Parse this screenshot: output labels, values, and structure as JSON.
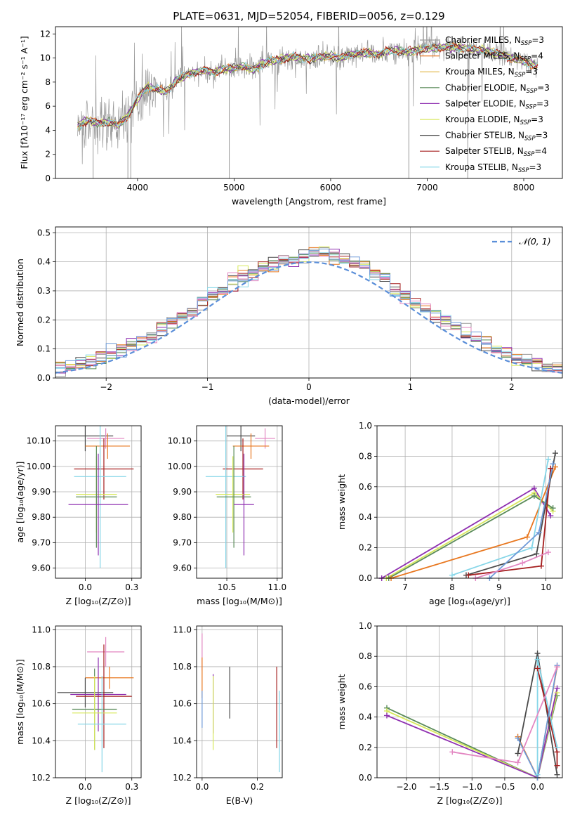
{
  "title": "PLATE=0631, MJD=52054, FIBERID=0056, z=0.129",
  "colors": {
    "Chabrier MILES": "#9a9a9a",
    "Salpeter MILES": "#e8771f",
    "Kroupa MILES": "#e3b84a",
    "Chabrier ELODIE": "#5b8c5a",
    "Salpeter ELODIE": "#8e2fb0",
    "Kroupa ELODIE": "#d7e85a",
    "Chabrier STELIB": "#4a4a4a",
    "Salpeter STELIB": "#a51f1f",
    "Kroupa STELIB": "#86d6e8",
    "Normal": "#5b8fd9",
    "Extra1": "#e387c2",
    "Extra2": "#6e9ad8"
  },
  "chart_data": [
    {
      "type": "line",
      "xlabel": "wavelength [Angstrom, rest frame]",
      "ylabel": "Flux [fλ10⁻¹⁷ erg cm⁻² s⁻¹ A⁻¹]",
      "xlim": [
        3150,
        8400
      ],
      "ylim": [
        0,
        12.6
      ],
      "xticks": [
        4000,
        5000,
        6000,
        7000,
        8000
      ],
      "yticks": [
        0,
        2,
        4,
        6,
        8,
        10,
        12
      ],
      "grid": false,
      "legend_position": "top-right",
      "legend": [
        {
          "label": "Chabrier MILES, N",
          "sub": "SSP",
          "suffix": "=3",
          "key": "Chabrier MILES"
        },
        {
          "label": "Salpeter MILES, N",
          "sub": "SSP",
          "suffix": "=4",
          "key": "Salpeter MILES"
        },
        {
          "label": "Kroupa MILES, N",
          "sub": "SSP",
          "suffix": "=3",
          "key": "Kroupa MILES"
        },
        {
          "label": "Chabrier ELODIE, N",
          "sub": "SSP",
          "suffix": "=3",
          "key": "Chabrier ELODIE"
        },
        {
          "label": "Salpeter ELODIE, N",
          "sub": "SSP",
          "suffix": "=3",
          "key": "Salpeter ELODIE"
        },
        {
          "label": "Kroupa ELODIE, N",
          "sub": "SSP",
          "suffix": "=3",
          "key": "Kroupa ELODIE"
        },
        {
          "label": "Chabrier STELIB, N",
          "sub": "SSP",
          "suffix": "=3",
          "key": "Chabrier STELIB"
        },
        {
          "label": "Salpeter STELIB, N",
          "sub": "SSP",
          "suffix": "=4",
          "key": "Salpeter STELIB"
        },
        {
          "label": "Kroupa STELIB, N",
          "sub": "SSP",
          "suffix": "=3",
          "key": "Kroupa STELIB"
        }
      ],
      "continuum": [
        [
          3380,
          4.4
        ],
        [
          3480,
          4.8
        ],
        [
          3600,
          4.6
        ],
        [
          3700,
          4.7
        ],
        [
          3800,
          4.4
        ],
        [
          3900,
          5.2
        ],
        [
          4000,
          6.6
        ],
        [
          4100,
          7.6
        ],
        [
          4200,
          7.4
        ],
        [
          4300,
          7.2
        ],
        [
          4400,
          8.1
        ],
        [
          4500,
          8.6
        ],
        [
          4600,
          8.8
        ],
        [
          4700,
          9.0
        ],
        [
          4800,
          8.8
        ],
        [
          4900,
          9.1
        ],
        [
          5000,
          9.2
        ],
        [
          5100,
          9.3
        ],
        [
          5200,
          9.0
        ],
        [
          5300,
          9.6
        ],
        [
          5400,
          9.8
        ],
        [
          5500,
          9.9
        ],
        [
          5600,
          10.1
        ],
        [
          5700,
          10.0
        ],
        [
          5800,
          9.9
        ],
        [
          5900,
          10.1
        ],
        [
          6000,
          10.2
        ],
        [
          6100,
          10.0
        ],
        [
          6200,
          10.3
        ],
        [
          6300,
          10.4
        ],
        [
          6400,
          10.4
        ],
        [
          6500,
          10.3
        ],
        [
          6600,
          10.6
        ],
        [
          6700,
          10.6
        ],
        [
          6800,
          10.5
        ],
        [
          6900,
          10.7
        ],
        [
          7000,
          10.8
        ],
        [
          7200,
          10.9
        ],
        [
          7400,
          10.8
        ],
        [
          7600,
          10.6
        ],
        [
          7800,
          10.2
        ],
        [
          8000,
          9.7
        ],
        [
          8150,
          9.3
        ]
      ]
    },
    {
      "type": "area",
      "xlabel": "(data-model)/error",
      "ylabel": "Normed distribution",
      "xlim": [
        -2.5,
        2.5
      ],
      "ylim": [
        0,
        0.52
      ],
      "xticks": [
        -2,
        -1,
        0,
        1,
        2
      ],
      "yticks": [
        0.0,
        0.1,
        0.2,
        0.3,
        0.4,
        0.5
      ],
      "grid": true,
      "legend_position": "top-right",
      "legend": [
        {
          "label": "𝒩(0, 1)",
          "key": "Normal"
        }
      ],
      "bin_width": 0.1
    },
    {
      "type": "scatter",
      "xlabel": "Z [log₁₀(Z/Z⊙)]",
      "ylabel": "age  [log₁₀(age/yr)]",
      "xlim": [
        -0.16,
        0.3
      ],
      "ylim": [
        9.56,
        10.16
      ],
      "xticks": [
        0.0,
        0.25
      ],
      "yticks": [
        9.6,
        9.7,
        9.8,
        9.9,
        10.0,
        10.1
      ],
      "grid": true,
      "points": [
        {
          "x": 0.0,
          "y": 10.12,
          "xerr": 0.15,
          "yerr": 0.06,
          "key": "Chabrier STELIB"
        },
        {
          "x": 0.11,
          "y": 10.11,
          "xerr": 0.1,
          "yerr": 0.04,
          "key": "Extra1"
        },
        {
          "x": 0.12,
          "y": 10.08,
          "xerr": 0.12,
          "yerr": 0.05,
          "key": "Salpeter MILES"
        },
        {
          "x": 0.1,
          "y": 9.99,
          "xerr": 0.16,
          "yerr": 0.12,
          "key": "Salpeter STELIB"
        },
        {
          "x": 0.08,
          "y": 9.96,
          "xerr": 0.14,
          "yerr": 0.36,
          "key": "Kroupa STELIB"
        },
        {
          "x": 0.06,
          "y": 9.89,
          "xerr": 0.11,
          "yerr": 0.15,
          "key": "Kroupa ELODIE"
        },
        {
          "x": 0.06,
          "y": 9.88,
          "xerr": 0.11,
          "yerr": 0.2,
          "key": "Chabrier ELODIE"
        },
        {
          "x": 0.07,
          "y": 9.85,
          "xerr": 0.16,
          "yerr": 0.2,
          "key": "Salpeter ELODIE"
        }
      ]
    },
    {
      "type": "scatter",
      "xlabel": "mass [log₁₀(M/M⊙)]",
      "ylabel": "",
      "xlim": [
        10.2,
        11.05
      ],
      "ylim": [
        9.56,
        10.16
      ],
      "xticks": [
        10.5,
        11.0
      ],
      "yticks": [
        9.6,
        9.7,
        9.8,
        9.9,
        10.0,
        10.1
      ],
      "grid": true,
      "points": [
        {
          "x": 10.64,
          "y": 10.12,
          "xerr": 0.14,
          "yerr": 0.06,
          "key": "Chabrier STELIB"
        },
        {
          "x": 10.88,
          "y": 10.11,
          "xerr": 0.1,
          "yerr": 0.04,
          "key": "Extra1"
        },
        {
          "x": 10.74,
          "y": 10.08,
          "xerr": 0.18,
          "yerr": 0.05,
          "key": "Salpeter MILES"
        },
        {
          "x": 10.66,
          "y": 9.99,
          "xerr": 0.2,
          "yerr": 0.12,
          "key": "Salpeter STELIB"
        },
        {
          "x": 10.49,
          "y": 9.96,
          "xerr": 0.2,
          "yerr": 0.36,
          "key": "Kroupa STELIB"
        },
        {
          "x": 10.56,
          "y": 9.89,
          "xerr": 0.17,
          "yerr": 0.15,
          "key": "Kroupa ELODIE"
        },
        {
          "x": 10.57,
          "y": 9.88,
          "xerr": 0.17,
          "yerr": 0.2,
          "key": "Chabrier ELODIE"
        },
        {
          "x": 10.67,
          "y": 9.85,
          "xerr": 0.1,
          "yerr": 0.2,
          "key": "Salpeter ELODIE"
        }
      ]
    },
    {
      "type": "line",
      "xlabel": "age  [log₁₀(age/yr)]",
      "ylabel": "mass weight",
      "xlim": [
        6.4,
        10.35
      ],
      "ylim": [
        0,
        1.0
      ],
      "xticks": [
        7,
        8,
        9,
        10
      ],
      "yticks": [
        0.0,
        0.2,
        0.4,
        0.6,
        0.8,
        1.0
      ],
      "grid": true,
      "series": [
        {
          "key": "Salpeter ELODIE",
          "x": [
            6.5,
            9.75,
            10.1
          ],
          "y": [
            0.0,
            0.59,
            0.41
          ]
        },
        {
          "key": "Kroupa ELODIE",
          "x": [
            6.6,
            9.75,
            10.15
          ],
          "y": [
            0.0,
            0.56,
            0.44
          ]
        },
        {
          "key": "Chabrier ELODIE",
          "x": [
            6.65,
            9.75,
            10.15
          ],
          "y": [
            0.0,
            0.54,
            0.46
          ]
        },
        {
          "key": "Salpeter MILES",
          "x": [
            6.7,
            9.6,
            10.2
          ],
          "y": [
            0.0,
            0.27,
            0.73
          ]
        },
        {
          "key": "Chabrier STELIB",
          "x": [
            8.3,
            9.8,
            10.2
          ],
          "y": [
            0.02,
            0.16,
            0.82
          ]
        },
        {
          "key": "Salpeter STELIB",
          "x": [
            8.35,
            9.9,
            10.1
          ],
          "y": [
            0.02,
            0.08,
            0.72
          ]
        },
        {
          "key": "Kroupa STELIB",
          "x": [
            8.0,
            9.7,
            10.05
          ],
          "y": [
            0.02,
            0.2,
            0.78
          ]
        },
        {
          "key": "Extra2",
          "x": [
            8.8,
            9.85,
            10.15
          ],
          "y": [
            0.0,
            0.3,
            0.75
          ]
        },
        {
          "key": "Extra1",
          "x": [
            8.5,
            9.5,
            10.05
          ],
          "y": [
            0.0,
            0.1,
            0.17
          ]
        }
      ]
    },
    {
      "type": "scatter",
      "xlabel": "Z [log₁₀(Z/Z⊙)]",
      "ylabel": "mass [log₁₀(M/M⊙)]",
      "xlim": [
        -0.16,
        0.3
      ],
      "ylim": [
        10.2,
        11.02
      ],
      "xticks": [
        0.0,
        0.25
      ],
      "yticks": [
        10.2,
        10.4,
        10.6,
        10.8,
        11.0
      ],
      "grid": true,
      "points": [
        {
          "x": 0.11,
          "y": 10.88,
          "xerr": 0.1,
          "yerr": 0.08,
          "key": "Extra1"
        },
        {
          "x": 0.13,
          "y": 10.74,
          "xerr": 0.13,
          "yerr": 0.06,
          "key": "Salpeter MILES"
        },
        {
          "x": 0.0,
          "y": 10.66,
          "xerr": 0.15,
          "yerr": 0.08,
          "key": "Chabrier STELIB"
        },
        {
          "x": 0.07,
          "y": 10.65,
          "xerr": 0.15,
          "yerr": 0.2,
          "key": "Salpeter ELODIE"
        },
        {
          "x": 0.1,
          "y": 10.64,
          "xerr": 0.15,
          "yerr": 0.28,
          "key": "Salpeter STELIB"
        },
        {
          "x": 0.05,
          "y": 10.57,
          "xerr": 0.12,
          "yerr": 0.22,
          "key": "Chabrier ELODIE"
        },
        {
          "x": 0.05,
          "y": 10.55,
          "xerr": 0.12,
          "yerr": 0.2,
          "key": "Kroupa ELODIE"
        },
        {
          "x": 0.09,
          "y": 10.49,
          "xerr": 0.13,
          "yerr": 0.26,
          "key": "Kroupa STELIB"
        }
      ]
    },
    {
      "type": "scatter",
      "xlabel": "E(B-V)",
      "ylabel": "",
      "xlim": [
        -0.02,
        0.29
      ],
      "ylim": [
        10.2,
        11.02
      ],
      "xticks": [
        0.0,
        0.2
      ],
      "yticks": [
        10.2,
        10.4,
        10.6,
        10.8,
        11.0
      ],
      "grid": true,
      "points": [
        {
          "x": 0.0,
          "y": 10.88,
          "xerr": 0,
          "yerr": 0.1,
          "key": "Extra1"
        },
        {
          "x": 0.0,
          "y": 10.74,
          "xerr": 0,
          "yerr": 0.11,
          "key": "Salpeter MILES"
        },
        {
          "x": 0.0,
          "y": 10.57,
          "xerr": 0,
          "yerr": 0.1,
          "key": "Extra2"
        },
        {
          "x": 0.04,
          "y": 10.6,
          "xerr": 0,
          "yerr": 0.16,
          "key": "Salpeter ELODIE"
        },
        {
          "x": 0.04,
          "y": 10.55,
          "xerr": 0,
          "yerr": 0.2,
          "key": "Kroupa ELODIE"
        },
        {
          "x": 0.1,
          "y": 10.66,
          "xerr": 0,
          "yerr": 0.14,
          "key": "Chabrier STELIB"
        },
        {
          "x": 0.27,
          "y": 10.58,
          "xerr": 0,
          "yerr": 0.22,
          "key": "Salpeter STELIB"
        },
        {
          "x": 0.28,
          "y": 10.45,
          "xerr": 0,
          "yerr": 0.22,
          "key": "Kroupa STELIB"
        }
      ]
    },
    {
      "type": "line",
      "xlabel": "Z [log₁₀(Z/Z⊙)]",
      "ylabel": "mass weight",
      "xlim": [
        -2.45,
        0.38
      ],
      "ylim": [
        0,
        1.0
      ],
      "xticks": [
        -2.0,
        -1.5,
        -1.0,
        -0.5,
        0.0
      ],
      "yticks": [
        0.0,
        0.2,
        0.4,
        0.6,
        0.8,
        1.0
      ],
      "grid": true,
      "series": [
        {
          "key": "Chabrier ELODIE",
          "x": [
            -2.3,
            0.0,
            0.3
          ],
          "y": [
            0.46,
            0.0,
            0.54
          ]
        },
        {
          "key": "Kroupa ELODIE",
          "x": [
            -2.3,
            0.0,
            0.3
          ],
          "y": [
            0.44,
            0.0,
            0.56
          ]
        },
        {
          "key": "Salpeter ELODIE",
          "x": [
            -2.3,
            0.0,
            0.3
          ],
          "y": [
            0.41,
            0.0,
            0.59
          ]
        },
        {
          "key": "Salpeter MILES",
          "x": [
            -0.3,
            0.0,
            0.3
          ],
          "y": [
            0.27,
            0.0,
            0.73
          ]
        },
        {
          "key": "Chabrier STELIB",
          "x": [
            -0.3,
            0.0,
            0.3
          ],
          "y": [
            0.16,
            0.82,
            0.02
          ]
        },
        {
          "key": "Salpeter STELIB",
          "x": [
            0.0,
            0.3,
            0.3
          ],
          "y": [
            0.72,
            0.17,
            0.08
          ]
        },
        {
          "key": "Kroupa STELIB",
          "x": [
            0.0,
            0.0,
            0.3
          ],
          "y": [
            0.02,
            0.78,
            0.2
          ]
        },
        {
          "key": "Extra2",
          "x": [
            -0.3,
            0.0,
            0.3
          ],
          "y": [
            0.26,
            0.0,
            0.74
          ]
        },
        {
          "key": "Extra1",
          "x": [
            -1.3,
            -0.3,
            0.3
          ],
          "y": [
            0.17,
            0.1,
            0.73
          ]
        }
      ]
    }
  ]
}
